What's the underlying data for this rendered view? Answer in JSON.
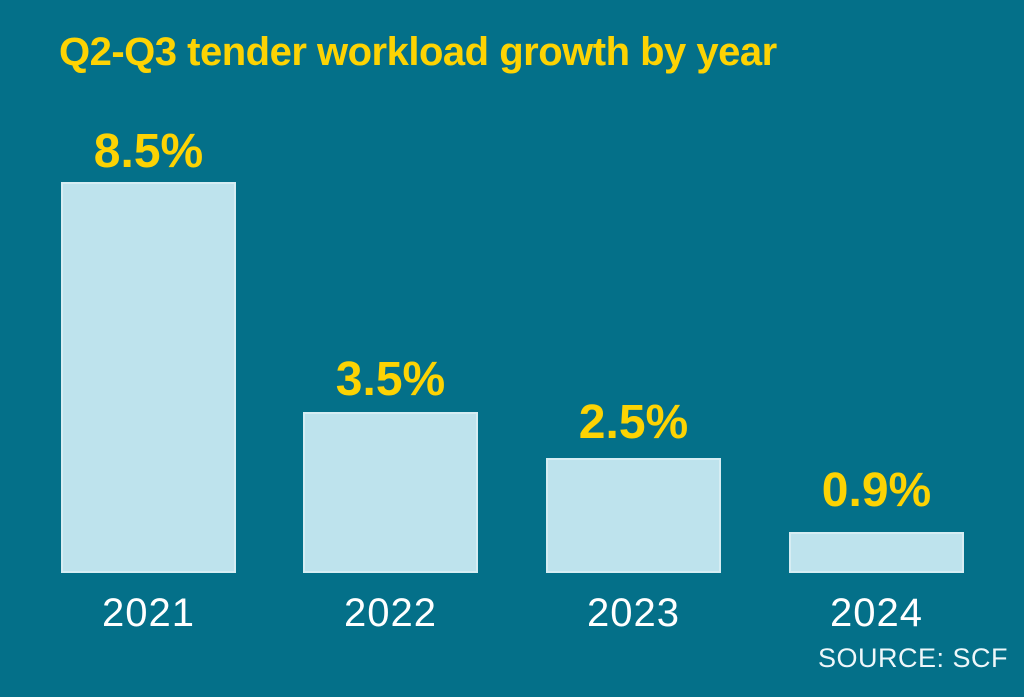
{
  "chart_data": {
    "type": "bar",
    "title": "Q2-Q3 tender workload growth by year",
    "categories": [
      "2021",
      "2022",
      "2023",
      "2024"
    ],
    "values": [
      8.5,
      3.5,
      2.5,
      0.9
    ],
    "value_labels": [
      "8.5%",
      "3.5%",
      "2.5%",
      "0.9%"
    ],
    "xlabel": "",
    "ylabel": "",
    "ylim": [
      0,
      8.5
    ],
    "grid": false,
    "legend": false,
    "source_label": "SOURCE: SCF",
    "colors": {
      "background": "#047089",
      "bar_fill": "#bee3ed",
      "bar_border": "#d6edf3",
      "title_text": "#fdd303",
      "value_text": "#fdd303",
      "year_text": "#ffffff",
      "source_text": "#eef7fa"
    }
  }
}
